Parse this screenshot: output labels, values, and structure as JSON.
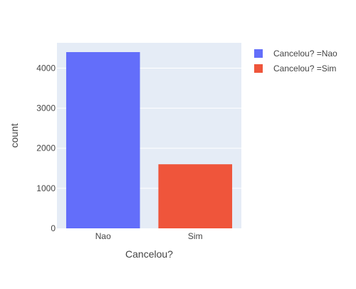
{
  "chart_data": {
    "type": "bar",
    "categories": [
      "Nao",
      "Sim"
    ],
    "series": [
      {
        "name": "Cancelou? =Nao",
        "values": [
          4400,
          0
        ]
      },
      {
        "name": "Cancelou? =Sim",
        "values": [
          0,
          1600
        ]
      }
    ],
    "values": [
      4400,
      1600
    ],
    "xlabel": "Cancelou?",
    "ylabel": "count",
    "ylim": [
      0,
      4632
    ],
    "yticks": [
      0,
      1000,
      2000,
      3000,
      4000
    ],
    "grid": true,
    "legend_position": "top-right",
    "colors": [
      "#636efa",
      "#ef553b"
    ],
    "plot_background": "#e5ecf6"
  }
}
